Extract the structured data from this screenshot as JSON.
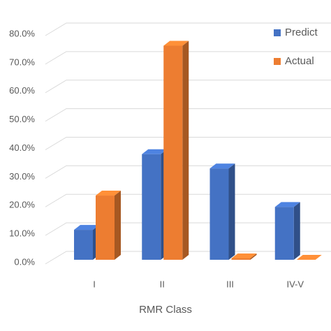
{
  "chart_data": {
    "type": "bar",
    "categories": [
      "I",
      "II",
      "III",
      "IV-V"
    ],
    "series": [
      {
        "name": "Predict",
        "color": "#4472c4",
        "values": [
          10.5,
          37,
          32,
          18.5
        ]
      },
      {
        "name": "Actual",
        "color": "#ed7d31",
        "values": [
          22.5,
          75,
          0.5,
          0
        ]
      }
    ],
    "x_label": "RMR Class",
    "ylim": [
      0,
      80
    ],
    "yticks": [
      {
        "value": 0,
        "label": "0.0%"
      },
      {
        "value": 10,
        "label": "10.0%"
      },
      {
        "value": 20,
        "label": "20.0%"
      },
      {
        "value": 30,
        "label": "30.0%"
      },
      {
        "value": 40,
        "label": "40.0%"
      },
      {
        "value": 50,
        "label": "50.0%"
      },
      {
        "value": 60,
        "label": "60.0%"
      },
      {
        "value": 70,
        "label": "70.0%"
      },
      {
        "value": 80,
        "label": "80.0%"
      }
    ],
    "grid": true,
    "legend": "top-right"
  }
}
